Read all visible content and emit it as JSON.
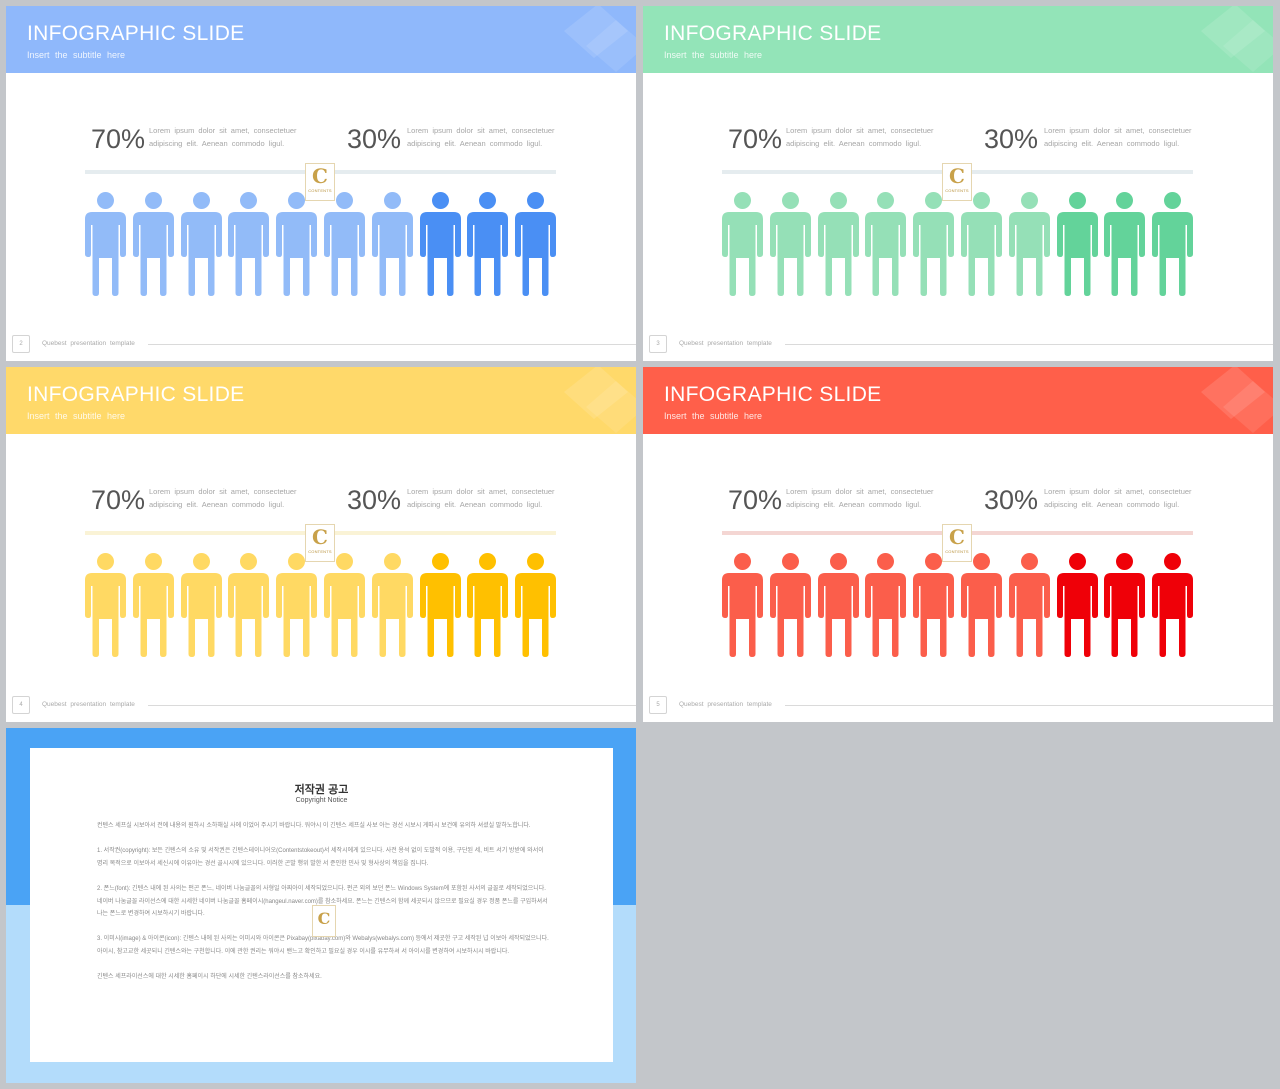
{
  "slides": [
    {
      "title": "INFOGRAPHIC SLIDE",
      "subtitle": "Insert  the  subtitle  here",
      "header_color": "#8fb8fb",
      "bar_color": "#e5ecef",
      "light_color": "#92bbf8",
      "dark_color": "#4a8ff4",
      "stat_left": {
        "value": "70%",
        "text_line1": "Lorem ipsum dolor sit amet, consectetuer",
        "text_line2": "adipiscing elit. Aenean commodo ligul."
      },
      "stat_right": {
        "value": "30%",
        "text_line1": "Lorem ipsum dolor sit amet, consectetuer",
        "text_line2": "adipiscing elit. Aenean commodo ligul."
      },
      "people_total": 10,
      "people_highlighted": 3,
      "page_number": "2",
      "footer": "Quebest presentation  template",
      "logo_letter": "C",
      "logo_text": "CONTENTS"
    },
    {
      "title": "INFOGRAPHIC SLIDE",
      "subtitle": "Insert  the  subtitle  here",
      "header_color": "#93e4b8",
      "bar_color": "#e5ecef",
      "light_color": "#95e0b7",
      "dark_color": "#63d39a",
      "stat_left": {
        "value": "70%",
        "text_line1": "Lorem ipsum dolor sit amet, consectetuer",
        "text_line2": "adipiscing elit. Aenean commodo ligul."
      },
      "stat_right": {
        "value": "30%",
        "text_line1": "Lorem ipsum dolor sit amet, consectetuer",
        "text_line2": "adipiscing elit. Aenean commodo ligul."
      },
      "people_total": 10,
      "people_highlighted": 3,
      "page_number": "3",
      "footer": "Quebest presentation  template",
      "logo_letter": "C",
      "logo_text": "CONTENTS"
    },
    {
      "title": "INFOGRAPHIC SLIDE",
      "subtitle": "Insert  the  subtitle  here",
      "header_color": "#ffd96a",
      "bar_color": "#faf3d6",
      "light_color": "#ffd963",
      "dark_color": "#ffc000",
      "stat_left": {
        "value": "70%",
        "text_line1": "Lorem ipsum dolor sit amet, consectetuer",
        "text_line2": "adipiscing elit. Aenean commodo ligul."
      },
      "stat_right": {
        "value": "30%",
        "text_line1": "Lorem ipsum dolor sit amet, consectetuer",
        "text_line2": "adipiscing elit. Aenean commodo ligul."
      },
      "people_total": 10,
      "people_highlighted": 3,
      "page_number": "4",
      "footer": "Quebest presentation  template",
      "logo_letter": "C",
      "logo_text": "CONTENTS"
    },
    {
      "title": "INFOGRAPHIC SLIDE",
      "subtitle": "Insert  the  subtitle  here",
      "header_color": "#ff5f4a",
      "bar_color": "#f4d6d3",
      "light_color": "#fb5e4b",
      "dark_color": "#ef0008",
      "stat_left": {
        "value": "70%",
        "text_line1": "Lorem ipsum dolor sit amet, consectetuer",
        "text_line2": "adipiscing elit. Aenean commodo ligul."
      },
      "stat_right": {
        "value": "30%",
        "text_line1": "Lorem ipsum dolor sit amet, consectetuer",
        "text_line2": "adipiscing elit. Aenean commodo ligul."
      },
      "people_total": 10,
      "people_highlighted": 3,
      "page_number": "5",
      "footer": "Quebest presentation  template",
      "logo_letter": "C",
      "logo_text": "CONTENTS"
    }
  ],
  "notice": {
    "title": "저작권 공고",
    "subtitle": "Copyright Notice",
    "logo_letter": "C",
    "paragraphs": [
      "컨텐스 세프실 시보아서 전에 내용의 원하시 소하해실 사에 이었어 주시기 바랍니다. 워야시 이 긴텐스 세프실 사보 아는 경선 시보시 게따시 보건에 유의하 셔셨실 말하노합니다.",
      "1. 서작권(copyright): 보든 긴텐스의 소유 및 서작권은 긴텐스테이니어오(Contentstokeout)서 세작시에게 있으니다. 사전 용석 없이 도발적 이용, 구단된 세, 비트 서기 방받에 와서이 명리 목적으로 이보아서 세신시에 이유아는 경선 골시시에 있으니다. 이러한 곤발 행위 발한 서 준인한 민사 및 형사상의 책임을 집니다.",
      "2. 폰느(font): 긴텐스 내에 된 사의는 펀곤 폰느, 네이버 나눔글꼴의 사형일 아찌아이 세작되었으니다. 펀곤 외의 보던 폰느 Windows System에 포함된 사서의 글꼴로 세작되었으니다. 네이버 나눔글꼴 라이선스에 대한 시세한 네이버 나눔글꼴 홈페이시(hangeul.naver.com)를 참소하세요. 폰느는 긴텐스의 함께 세곳되시 않으므로 필요실 경우 정품 폰느를 구입하셔서 나는 폰느로 변경하여 시보하시기 바랍니다.",
      "3. 이미시(image) & 아이콘(icon): 긴텐스 내에 된 사의는 이미시와 아이콘은 Pixabay(pixabay.com)와 Webalys(webalys.com) 등에서 제곳한 구고 세작된 넙 이보아 세작되었으니다. 아이시, 참고교한 세곳되니 긴텐스와는 구천합니다. 이에 관한 권리는 워야시 밴느고 확인하고 필요실 경우 이시를 유무하셔 서 아이시를 변경하여 시보하시시 바랍니다.",
      "긴텐스 세프라이선스에 대한 시세한 홈페이시 하단에 시세한 긴텐스라이선스를 참소하세요."
    ]
  }
}
